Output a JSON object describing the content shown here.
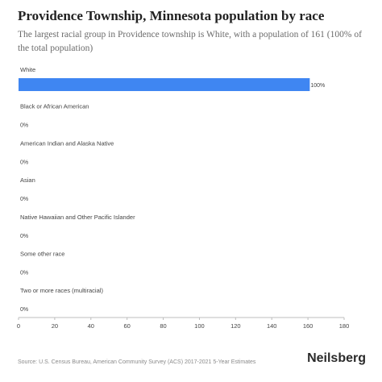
{
  "title": "Providence Township, Minnesota population by race",
  "subtitle": "The largest racial group in Providence township is White, with a population of 161 (100% of the total population)",
  "footer": "Source: U.S. Census Bureau, American Community Survey (ACS) 2017-2021 5-Year Estimates",
  "brand": "Neilsberg",
  "colors": {
    "bar": "#3f86f2",
    "axis": "#bdbdbd",
    "text": "#444444"
  },
  "chart_data": {
    "type": "bar",
    "orientation": "horizontal",
    "categories": [
      "White",
      "Black or African American",
      "American Indian and Alaska Native",
      "Asian",
      "Native Hawaiian and Other Pacific Islander",
      "Some other race",
      "Two or more races (multiracial)"
    ],
    "values": [
      161,
      0,
      0,
      0,
      0,
      0,
      0
    ],
    "data_labels": [
      "100%",
      "0%",
      "0%",
      "0%",
      "0%",
      "0%",
      "0%"
    ],
    "xlim": [
      0,
      180
    ],
    "xticks": [
      0,
      20,
      40,
      60,
      80,
      100,
      120,
      140,
      160,
      180
    ],
    "grid": false
  }
}
